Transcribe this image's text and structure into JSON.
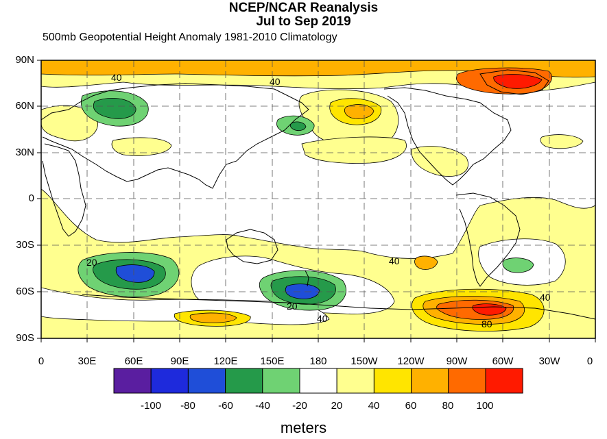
{
  "title_line1": "NCEP/NCAR Reanalysis",
  "title_line2": "Jul to Sep 2019",
  "subtitle": "500mb Geopotential Height Anomaly  1981-2010 Climatology",
  "lat_labels": [
    "90N",
    "60N",
    "30N",
    "0",
    "30S",
    "60S",
    "90S"
  ],
  "lon_labels": [
    "0",
    "30E",
    "60E",
    "90E",
    "120E",
    "150E",
    "180",
    "150W",
    "120W",
    "90W",
    "60W",
    "30W",
    "0"
  ],
  "colorbar": {
    "labels": [
      "-100",
      "-80",
      "-60",
      "-40",
      "-20",
      "20",
      "40",
      "60",
      "80",
      "100"
    ],
    "colors": [
      "#5a1ea0",
      "#1e2adc",
      "#1f4ed8",
      "#259a4a",
      "#6fd273",
      "#ffffff",
      "#ffff8f",
      "#ffe500",
      "#ffb100",
      "#ff6a00",
      "#ff1a00"
    ],
    "units": "meters"
  },
  "contour_labels": [
    "40",
    "40",
    "20",
    "40",
    "20",
    "40",
    "40",
    "80"
  ],
  "colors": {
    "ocean": "#ffffff",
    "land_line": "#000000",
    "grid": "#555555"
  }
}
